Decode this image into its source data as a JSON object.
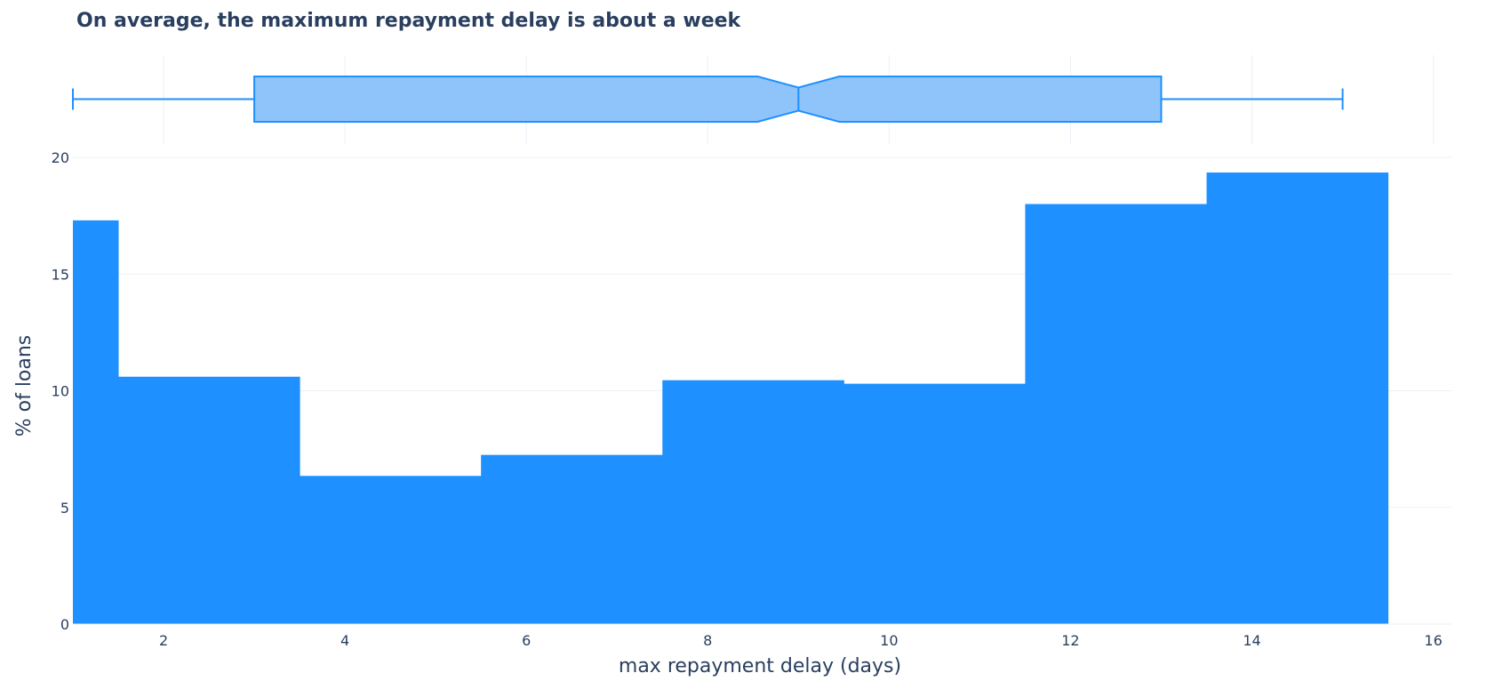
{
  "chart_data": {
    "type": "bar",
    "title": "On average, the maximum repayment delay is about a week",
    "xlabel": "max repayment delay (days)",
    "ylabel": "% of loans",
    "xlim": [
      1,
      16.2
    ],
    "ylim": [
      0,
      20
    ],
    "x_ticks": [
      2,
      4,
      6,
      8,
      10,
      12,
      14,
      16
    ],
    "y_ticks": [
      0,
      5,
      10,
      15,
      20
    ],
    "grid": true,
    "bins": [
      {
        "x0": 1,
        "x1": 1.5,
        "value": 17.3
      },
      {
        "x0": 1.5,
        "x1": 3.5,
        "value": 10.6
      },
      {
        "x0": 3.5,
        "x1": 5.5,
        "value": 6.35
      },
      {
        "x0": 5.5,
        "x1": 7.5,
        "value": 7.25
      },
      {
        "x0": 7.5,
        "x1": 9.5,
        "value": 10.45
      },
      {
        "x0": 9.5,
        "x1": 11.5,
        "value": 10.3
      },
      {
        "x0": 11.5,
        "x1": 13.5,
        "value": 18.0
      },
      {
        "x0": 13.5,
        "x1": 15.5,
        "value": 19.35
      }
    ],
    "box": {
      "min": 1,
      "q1": 3,
      "median": 9,
      "q3": 13,
      "max": 15,
      "notch_low": 8.55,
      "notch_high": 9.45
    },
    "colors": {
      "bar": "#1e90ff",
      "box_fill": "#8fc4fb",
      "box_line": "#1e90ff"
    }
  }
}
